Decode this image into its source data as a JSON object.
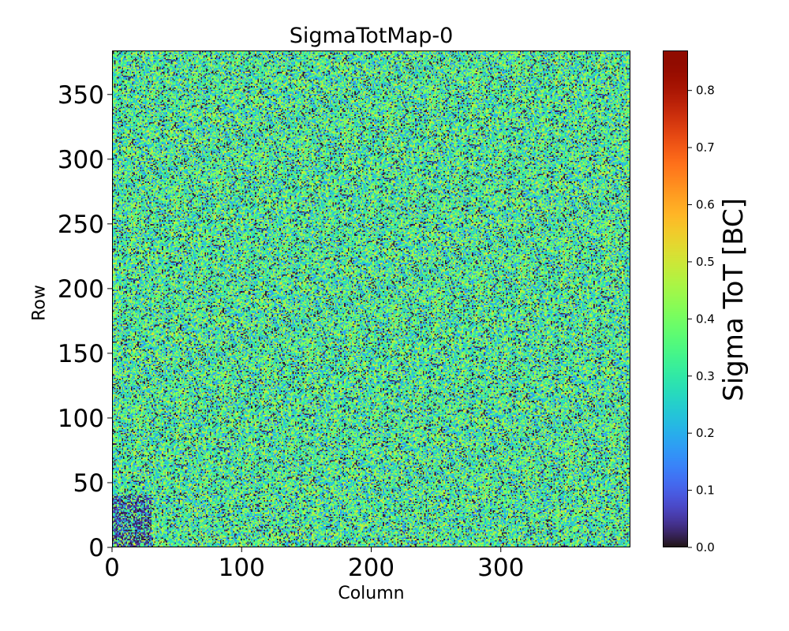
{
  "chart_data": {
    "type": "heatmap",
    "title": "SigmaTotMap-0",
    "xlabel": "Column",
    "ylabel": "Row",
    "xlim": [
      0,
      400
    ],
    "ylim": [
      0,
      384
    ],
    "x_ticks": [
      0,
      100,
      200,
      300
    ],
    "y_ticks": [
      0,
      50,
      100,
      150,
      200,
      250,
      300,
      350
    ],
    "x_tick_labels": [
      "0",
      "100",
      "200",
      "300"
    ],
    "y_tick_labels": [
      "0",
      "50",
      "100",
      "150",
      "200",
      "250",
      "300",
      "350"
    ],
    "colorbar": {
      "label": "Sigma ToT [BC]",
      "range": [
        0.0,
        0.87
      ],
      "ticks": [
        0.0,
        0.1,
        0.2,
        0.3,
        0.4,
        0.5,
        0.6,
        0.7,
        0.8
      ],
      "tick_labels": [
        "0.0",
        "0.1",
        "0.2",
        "0.3",
        "0.4",
        "0.5",
        "0.6",
        "0.7",
        "0.8"
      ],
      "colormap": "turbo"
    },
    "value_distribution": {
      "typical_range": [
        0.0,
        0.5
      ],
      "dominant_values": [
        0.2,
        0.3,
        0.4
      ],
      "low_value_region": {
        "columns": [
          0,
          30
        ],
        "rows": [
          0,
          40
        ]
      }
    }
  }
}
